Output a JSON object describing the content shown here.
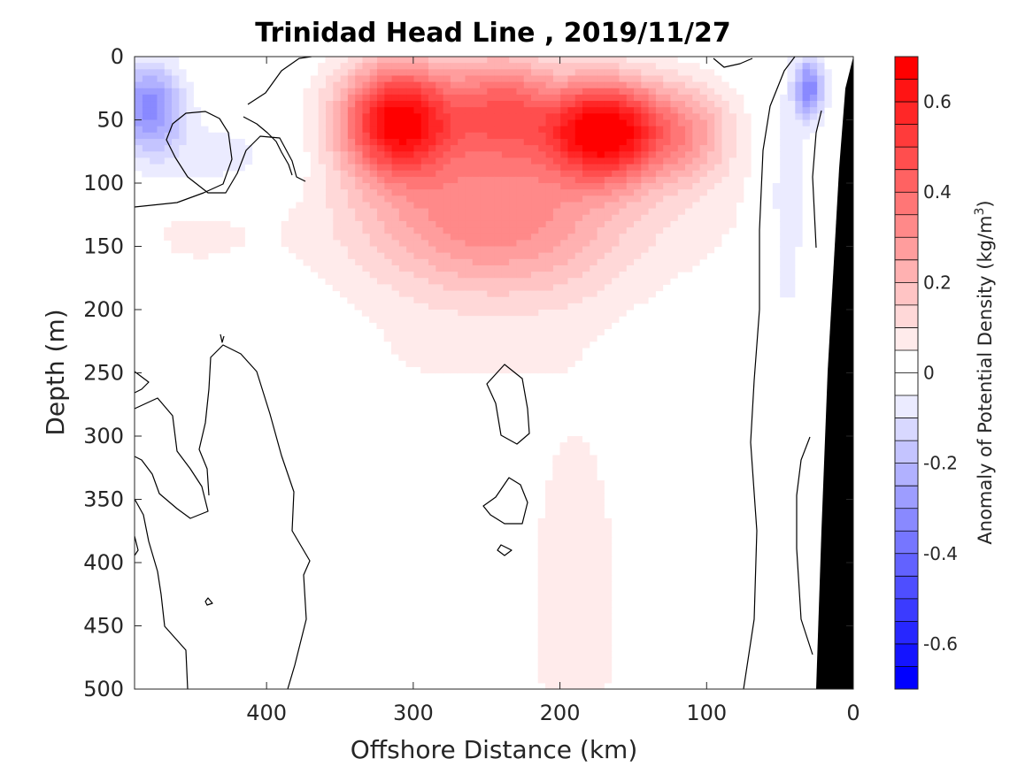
{
  "chart_data": {
    "type": "heatmap",
    "title": "Trinidad Head Line , 2019/11/27",
    "xlabel": "Offshore Distance (km)",
    "ylabel": "Depth (m)",
    "xlim": [
      490,
      0
    ],
    "ylim": [
      0,
      500
    ],
    "x_reversed": true,
    "y_reversed": true,
    "xticks": [
      400,
      300,
      200,
      100,
      0
    ],
    "yticks": [
      0,
      50,
      100,
      150,
      200,
      250,
      300,
      350,
      400,
      450,
      500
    ],
    "colorbar": {
      "label": "Anomaly of Potential Density (kg/m",
      "label_superscript": "3",
      "label_suffix": ")",
      "clim": [
        -0.7,
        0.7
      ],
      "ticks": [
        -0.6,
        -0.4,
        -0.2,
        0,
        0.2,
        0.4,
        0.6
      ],
      "tick_labels": [
        "-0.6",
        "-0.4",
        "-0.2",
        "0",
        "0.2",
        "0.4",
        "0.6"
      ],
      "levels": 28,
      "negative_color": "#0000ff",
      "positive_color": "#ff0000",
      "neutral_color": "#ffffff"
    },
    "features": [
      {
        "name": "positive anomaly core",
        "x": 310,
        "y": 50,
        "value": 0.66
      },
      {
        "name": "positive anomaly core",
        "x": 170,
        "y": 58,
        "value": 0.7
      },
      {
        "name": "near-surface positive patch",
        "x": 240,
        "y": 40,
        "value": 0.4
      },
      {
        "name": "nearshore positive patch",
        "x": 110,
        "y": 60,
        "value": 0.4
      },
      {
        "name": "negative anomaly",
        "x": 480,
        "y": 40,
        "value": -0.32
      },
      {
        "name": "negative anomaly",
        "x": 430,
        "y": 80,
        "value": -0.08
      },
      {
        "name": "negative anomaly",
        "x": 45,
        "y": 120,
        "value": -0.12
      },
      {
        "name": "negative anomaly",
        "x": 30,
        "y": 25,
        "value": -0.34
      },
      {
        "name": "deep positive plume",
        "x": 190,
        "y": 430,
        "value": 0.07
      }
    ],
    "bathymetry_color": "#000000"
  }
}
